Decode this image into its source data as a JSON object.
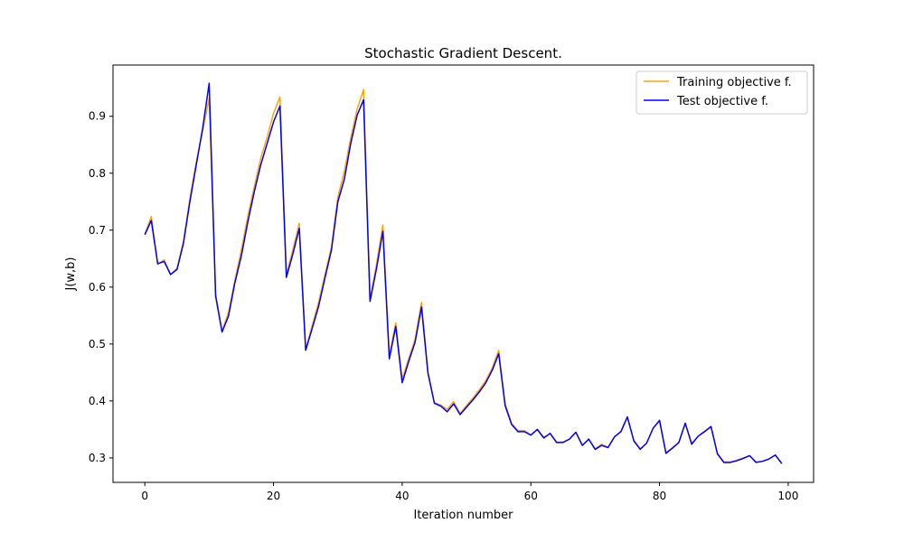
{
  "chart_data": {
    "type": "line",
    "title": "Stochastic Gradient Descent.",
    "xlabel": "Iteration number",
    "ylabel": "J(w,b)",
    "xlim": [
      -4.95,
      103.95
    ],
    "ylim": [
      0.257,
      0.99
    ],
    "xticks": [
      0,
      20,
      40,
      60,
      80,
      100
    ],
    "xtick_labels": [
      "0",
      "20",
      "40",
      "60",
      "80",
      "100"
    ],
    "yticks": [
      0.3,
      0.4,
      0.5,
      0.6,
      0.7,
      0.8,
      0.9
    ],
    "ytick_labels": [
      "0.3",
      "0.4",
      "0.5",
      "0.6",
      "0.7",
      "0.8",
      "0.9"
    ],
    "grid": false,
    "legend_position": "top-right",
    "x": [
      0,
      1,
      2,
      3,
      4,
      5,
      6,
      7,
      8,
      9,
      10,
      11,
      12,
      13,
      14,
      15,
      16,
      17,
      18,
      19,
      20,
      21,
      22,
      23,
      24,
      25,
      26,
      27,
      28,
      29,
      30,
      31,
      32,
      33,
      34,
      35,
      36,
      37,
      38,
      39,
      40,
      41,
      42,
      43,
      44,
      45,
      46,
      47,
      48,
      49,
      50,
      51,
      52,
      53,
      54,
      55,
      56,
      57,
      58,
      59,
      60,
      61,
      62,
      63,
      64,
      65,
      66,
      67,
      68,
      69,
      70,
      71,
      72,
      73,
      74,
      75,
      76,
      77,
      78,
      79,
      80,
      81,
      82,
      83,
      84,
      85,
      86,
      87,
      88,
      89,
      90,
      91,
      92,
      93,
      94,
      95,
      96,
      97,
      98,
      99
    ],
    "series": [
      {
        "name": "Training objective f.",
        "color": "#ffa500",
        "values": [
          0.693,
          0.724,
          0.64,
          0.648,
          0.622,
          0.633,
          0.68,
          0.755,
          0.82,
          0.875,
          0.932,
          0.588,
          0.523,
          0.555,
          0.612,
          0.665,
          0.724,
          0.776,
          0.826,
          0.863,
          0.905,
          0.934,
          0.622,
          0.665,
          0.712,
          0.49,
          0.532,
          0.573,
          0.622,
          0.67,
          0.758,
          0.803,
          0.862,
          0.913,
          0.947,
          0.578,
          0.64,
          0.709,
          0.48,
          0.537,
          0.438,
          0.474,
          0.508,
          0.573,
          0.452,
          0.397,
          0.393,
          0.385,
          0.399,
          0.378,
          0.392,
          0.405,
          0.42,
          0.436,
          0.458,
          0.489,
          0.395,
          0.361,
          0.348,
          0.348,
          0.34,
          0.35,
          0.336,
          0.343,
          0.328,
          0.328,
          0.333,
          0.345,
          0.322,
          0.332,
          0.316,
          0.324,
          0.319,
          0.337,
          0.347,
          0.372,
          0.331,
          0.316,
          0.326,
          0.352,
          0.365,
          0.309,
          0.318,
          0.327,
          0.361,
          0.325,
          0.338,
          0.347,
          0.355,
          0.308,
          0.293,
          0.293,
          0.296,
          0.3,
          0.304,
          0.293,
          0.294,
          0.298,
          0.305,
          0.291
        ]
      },
      {
        "name": "Test objective f.",
        "color": "#0000ff",
        "values": [
          0.692,
          0.717,
          0.641,
          0.645,
          0.622,
          0.631,
          0.677,
          0.75,
          0.815,
          0.88,
          0.958,
          0.584,
          0.521,
          0.549,
          0.608,
          0.655,
          0.714,
          0.767,
          0.814,
          0.852,
          0.89,
          0.918,
          0.617,
          0.658,
          0.703,
          0.489,
          0.527,
          0.566,
          0.616,
          0.665,
          0.75,
          0.789,
          0.852,
          0.902,
          0.929,
          0.575,
          0.632,
          0.698,
          0.474,
          0.531,
          0.432,
          0.469,
          0.503,
          0.565,
          0.449,
          0.396,
          0.391,
          0.381,
          0.395,
          0.376,
          0.389,
          0.402,
          0.416,
          0.432,
          0.454,
          0.483,
          0.392,
          0.359,
          0.346,
          0.346,
          0.34,
          0.35,
          0.335,
          0.343,
          0.327,
          0.327,
          0.333,
          0.345,
          0.322,
          0.333,
          0.315,
          0.322,
          0.318,
          0.337,
          0.346,
          0.372,
          0.33,
          0.315,
          0.326,
          0.352,
          0.366,
          0.308,
          0.317,
          0.327,
          0.361,
          0.324,
          0.338,
          0.346,
          0.355,
          0.307,
          0.292,
          0.292,
          0.295,
          0.299,
          0.304,
          0.292,
          0.294,
          0.298,
          0.305,
          0.29
        ]
      }
    ]
  }
}
